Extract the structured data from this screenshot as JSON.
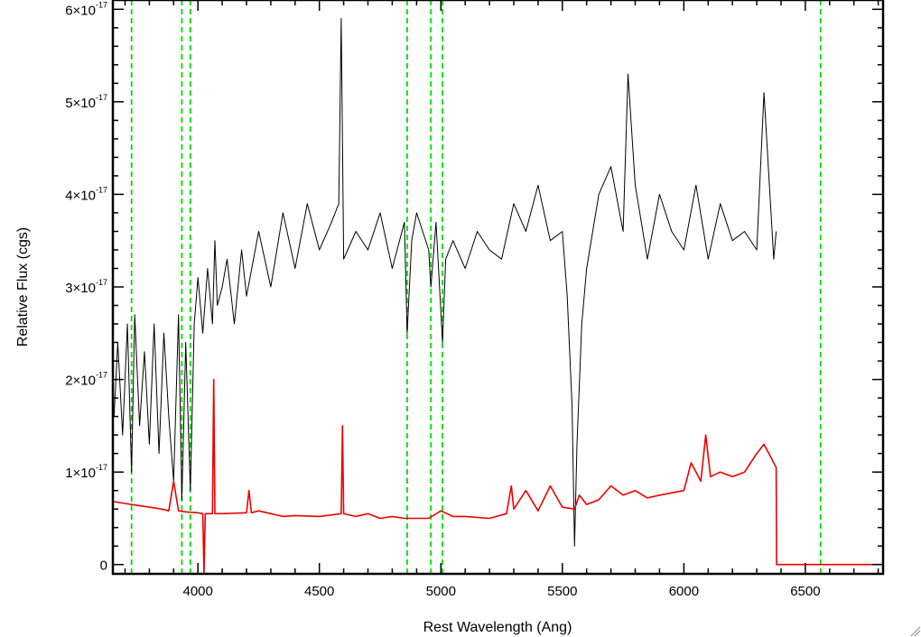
{
  "chart_data": {
    "type": "line",
    "xlabel": "Rest Wavelength (Ang)",
    "ylabel": "Relative Flux (cgs)",
    "xlim": [
      3650,
      6820
    ],
    "ylim": [
      -1e-18,
      6.1e-17
    ],
    "x_ticks": [
      {
        "value": 4000,
        "label": "4000"
      },
      {
        "value": 4500,
        "label": "4500"
      },
      {
        "value": 5000,
        "label": "5000"
      },
      {
        "value": 5500,
        "label": "5500"
      },
      {
        "value": 6000,
        "label": "6000"
      },
      {
        "value": 6500,
        "label": "6500"
      }
    ],
    "y_ticks": [
      {
        "value": 0,
        "mantissa": "0",
        "exponent": ""
      },
      {
        "value": 1e-17,
        "mantissa": "1×10",
        "exponent": "-17"
      },
      {
        "value": 2e-17,
        "mantissa": "2×10",
        "exponent": "-17"
      },
      {
        "value": 3e-17,
        "mantissa": "3×10",
        "exponent": "-17"
      },
      {
        "value": 4e-17,
        "mantissa": "4×10",
        "exponent": "-17"
      },
      {
        "value": 5e-17,
        "mantissa": "5×10",
        "exponent": "-17"
      },
      {
        "value": 6e-17,
        "mantissa": "6×10",
        "exponent": "-17"
      }
    ],
    "vertical_lines": {
      "color": "#00dd00",
      "style": "dashed",
      "x": [
        3727,
        3934,
        3969,
        4861,
        4959,
        5007,
        6563
      ]
    },
    "series": [
      {
        "color": "#000000",
        "x": [
          3655,
          3670,
          3690,
          3710,
          3727,
          3740,
          3760,
          3780,
          3800,
          3820,
          3840,
          3860,
          3880,
          3900,
          3920,
          3934,
          3950,
          3969,
          3985,
          4000,
          4020,
          4040,
          4060,
          4070,
          4080,
          4100,
          4120,
          4150,
          4180,
          4200,
          4250,
          4300,
          4350,
          4400,
          4450,
          4500,
          4550,
          4580,
          4590,
          4600,
          4650,
          4700,
          4750,
          4800,
          4850,
          4861,
          4880,
          4900,
          4950,
          4959,
          4980,
          5007,
          5020,
          5050,
          5100,
          5150,
          5200,
          5250,
          5300,
          5350,
          5400,
          5450,
          5500,
          5520,
          5540,
          5550,
          5560,
          5580,
          5600,
          5650,
          5700,
          5750,
          5770,
          5800,
          5850,
          5900,
          5950,
          6000,
          6050,
          6100,
          6150,
          6200,
          6250,
          6300,
          6330,
          6370,
          6380
        ],
        "values": [
          1.6e-17,
          2.4e-17,
          1.4e-17,
          2.6e-17,
          1e-17,
          2.7e-17,
          1.5e-17,
          2.3e-17,
          1.3e-17,
          2.6e-17,
          1.2e-17,
          2.5e-17,
          1.6e-17,
          9e-18,
          2.7e-17,
          7e-18,
          2.4e-17,
          8e-18,
          2.6e-17,
          3.1e-17,
          2.5e-17,
          3.2e-17,
          2.6e-17,
          3.5e-17,
          2.8e-17,
          3e-17,
          3.3e-17,
          2.6e-17,
          3.4e-17,
          2.9e-17,
          3.6e-17,
          3e-17,
          3.8e-17,
          3.2e-17,
          3.9e-17,
          3.4e-17,
          3.7e-17,
          3.9e-17,
          5.9e-17,
          3.3e-17,
          3.6e-17,
          3.4e-17,
          3.8e-17,
          3.2e-17,
          3.7e-17,
          2.5e-17,
          3.5e-17,
          3.8e-17,
          3.4e-17,
          3e-17,
          3.7e-17,
          2.4e-17,
          3.3e-17,
          3.5e-17,
          3.2e-17,
          3.6e-17,
          3.4e-17,
          3.3e-17,
          3.9e-17,
          3.6e-17,
          4.1e-17,
          3.5e-17,
          3.6e-17,
          2.9e-17,
          1.7e-17,
          2e-18,
          1.3e-17,
          2.6e-17,
          3.2e-17,
          4e-17,
          4.3e-17,
          3.6e-17,
          5.3e-17,
          4.1e-17,
          3.3e-17,
          4e-17,
          3.6e-17,
          3.4e-17,
          4.1e-17,
          3.3e-17,
          3.9e-17,
          3.5e-17,
          3.6e-17,
          3.4e-17,
          5.1e-17,
          3.3e-17,
          3.6e-17
        ]
      },
      {
        "color": "#ee0000",
        "x": [
          3655,
          3700,
          3750,
          3800,
          3850,
          3880,
          3900,
          3920,
          3950,
          4000,
          4020,
          4025,
          4030,
          4060,
          4065,
          4070,
          4080,
          4100,
          4200,
          4210,
          4220,
          4250,
          4300,
          4350,
          4400,
          4500,
          4590,
          4595,
          4600,
          4650,
          4700,
          4750,
          4800,
          4850,
          4900,
          4950,
          5000,
          5050,
          5100,
          5200,
          5270,
          5290,
          5300,
          5350,
          5400,
          5450,
          5500,
          5550,
          5570,
          5600,
          5650,
          5700,
          5750,
          5800,
          5850,
          5900,
          6000,
          6030,
          6070,
          6090,
          6110,
          6150,
          6200,
          6250,
          6300,
          6330,
          6380,
          6382,
          6820
        ],
        "values": [
          6.8e-18,
          6.6e-18,
          6.4e-18,
          6.2e-18,
          6e-18,
          5.8e-18,
          9e-18,
          5.8e-18,
          5.7e-18,
          5.6e-18,
          5.5e-18,
          -1e-18,
          5.5e-18,
          5.5e-18,
          2e-17,
          5.5e-18,
          5.5e-18,
          5.5e-18,
          5.6e-18,
          8e-18,
          5.6e-18,
          5.8e-18,
          5.5e-18,
          5.2e-18,
          5.3e-18,
          5.2e-18,
          5.5e-18,
          1.5e-17,
          5.5e-18,
          5.2e-18,
          5.5e-18,
          5e-18,
          5.2e-18,
          5e-18,
          5e-18,
          5e-18,
          5.8e-18,
          5.2e-18,
          5.2e-18,
          5e-18,
          5.5e-18,
          8.5e-18,
          6e-18,
          8e-18,
          5.8e-18,
          8.5e-18,
          6.2e-18,
          6e-18,
          7.5e-18,
          6.5e-18,
          7e-18,
          8.5e-18,
          7.5e-18,
          8e-18,
          7.2e-18,
          7.5e-18,
          8e-18,
          1.1e-17,
          9e-18,
          1.4e-17,
          9.5e-18,
          1e-17,
          9.5e-18,
          1e-17,
          1.2e-17,
          1.3e-17,
          1.05e-17,
          0.0,
          0.0
        ]
      }
    ]
  }
}
